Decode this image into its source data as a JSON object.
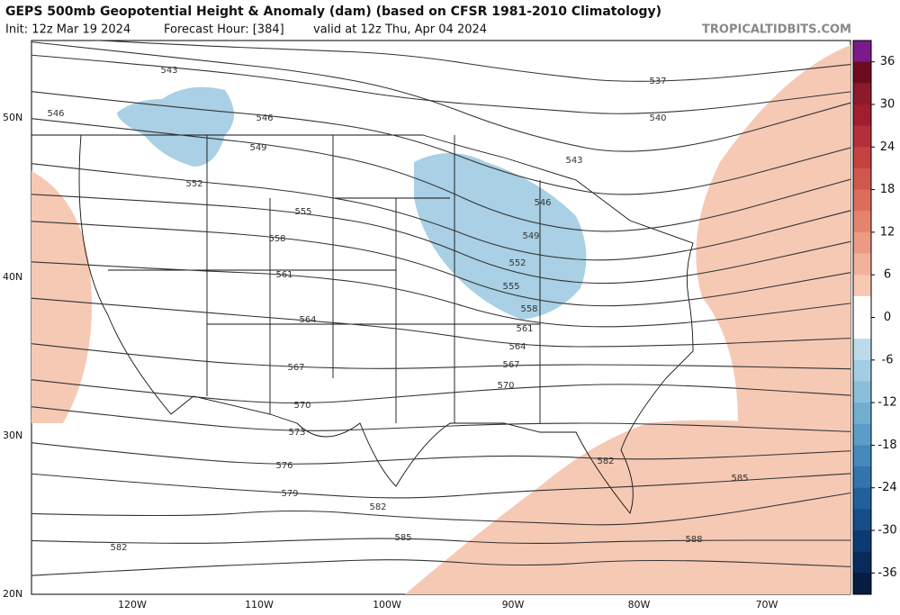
{
  "header": {
    "title": "GEPS 500mb Geopotential Height & Anomaly (dam) (based on CFSR 1981-2010 Climatology)",
    "init": "Init: 12z Mar 19 2024",
    "forecast_hour": "Forecast Hour: [384]",
    "valid": "valid at 12z Thu, Apr 04 2024",
    "source": "TROPICALTIDBITS.COM"
  },
  "map": {
    "latitudes": [
      "50N",
      "40N",
      "30N",
      "20N"
    ],
    "longitudes": [
      "120W",
      "110W",
      "100W",
      "90W",
      "80W",
      "70W"
    ],
    "contour_labels": [
      543,
      546,
      546,
      549,
      552,
      555,
      558,
      561,
      564,
      567,
      570,
      573,
      576,
      579,
      582,
      585,
      582,
      537,
      540,
      543,
      546,
      549,
      552,
      555,
      558,
      561,
      564,
      567,
      570,
      582,
      585,
      588
    ]
  },
  "colorbar": {
    "ticks": [
      36,
      30,
      24,
      18,
      12,
      6,
      0,
      -6,
      -12,
      -18,
      -24,
      -30,
      -36
    ],
    "colors": [
      "#7b1a8a",
      "#6e0a1e",
      "#8b1a2a",
      "#a01e2e",
      "#b3303a",
      "#c4423f",
      "#d0574d",
      "#dc6d5d",
      "#e5836f",
      "#ec9a84",
      "#f1b29c",
      "#f6c9b5",
      "#ffffff",
      "#ffffff",
      "#bcdbea",
      "#a3cde2",
      "#8abed9",
      "#72aed0",
      "#5b9dc6",
      "#4589bb",
      "#3274ad",
      "#22609c",
      "#164c88",
      "#0e3a72",
      "#0a2a5a",
      "#061c40"
    ]
  }
}
